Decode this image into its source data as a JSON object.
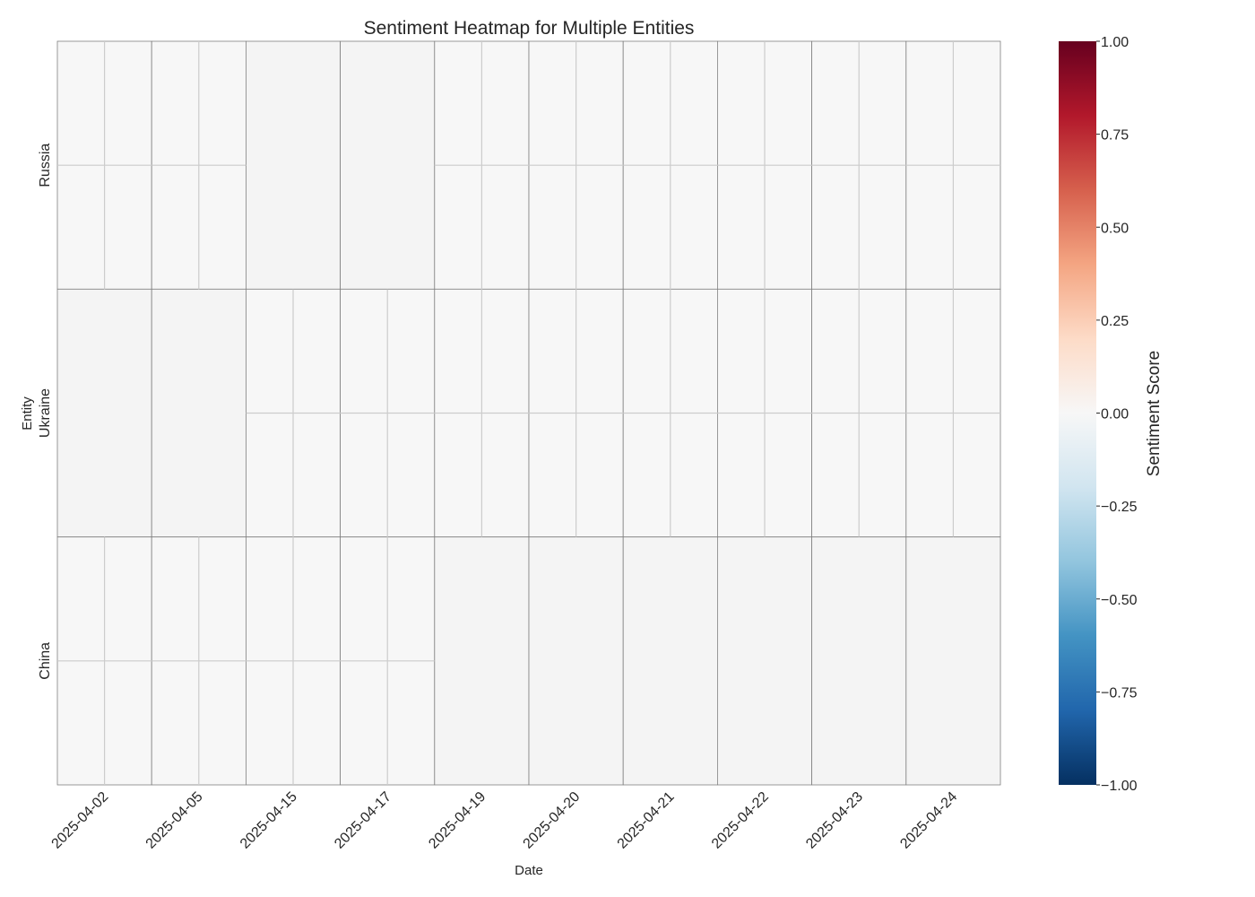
{
  "chart_data": {
    "type": "heatmap",
    "title": "Sentiment Heatmap for Multiple Entities",
    "xlabel": "Date",
    "ylabel": "Entity",
    "x": [
      "2025-04-02",
      "2025-04-05",
      "2025-04-15",
      "2025-04-17",
      "2025-04-19",
      "2025-04-20",
      "2025-04-21",
      "2025-04-22",
      "2025-04-23",
      "2025-04-24"
    ],
    "y": [
      "Russia",
      "Ukraine",
      "China"
    ],
    "values": [
      [
        0,
        0,
        null,
        null,
        0,
        0,
        0,
        0,
        0,
        0
      ],
      [
        null,
        null,
        0,
        0,
        0,
        0,
        0,
        0,
        0,
        0
      ],
      [
        0,
        0,
        0,
        0,
        null,
        null,
        null,
        null,
        null,
        null
      ]
    ],
    "missing_color": "#f4f4f4",
    "colormap": "RdBu_r",
    "colorbar": {
      "label": "Sentiment Score",
      "range": [
        -1.0,
        1.0
      ],
      "ticks": [
        "1.00",
        "0.75",
        "0.50",
        "0.25",
        "0.00",
        "−0.25",
        "−0.50",
        "−0.75",
        "−1.00"
      ],
      "tick_values": [
        1.0,
        0.75,
        0.5,
        0.25,
        0.0,
        -0.25,
        -0.5,
        -0.75,
        -1.0
      ],
      "stops": [
        "#053061",
        "#2166ac",
        "#4393c3",
        "#92c5de",
        "#d1e5f0",
        "#f7f7f7",
        "#fddbc7",
        "#f4a582",
        "#d6604d",
        "#b2182b",
        "#67001f"
      ]
    }
  }
}
